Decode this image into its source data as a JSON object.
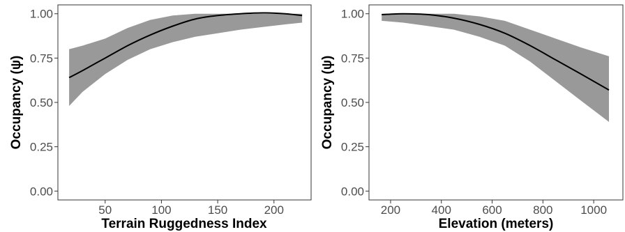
{
  "colors": {
    "band": "#999999",
    "line": "#000000"
  },
  "chart_data": [
    {
      "type": "line",
      "title": "",
      "xlabel": "Terrain Ruggedness Index",
      "ylabel": "Occupancy (ψ)",
      "xlim": [
        8,
        233
      ],
      "ylim": [
        -0.05,
        1.05
      ],
      "xticks": [
        50,
        100,
        150,
        200
      ],
      "xtick_labels": [
        "50",
        "100",
        "150",
        "200"
      ],
      "yticks": [
        0.0,
        0.25,
        0.5,
        0.75,
        1.0
      ],
      "ytick_labels": [
        "0.00",
        "0.25",
        "0.50",
        "0.75",
        "1.00"
      ],
      "grid": false,
      "x": [
        18,
        30,
        50,
        70,
        90,
        110,
        130,
        150,
        170,
        190,
        210,
        225
      ],
      "y": [
        0.64,
        0.68,
        0.75,
        0.82,
        0.88,
        0.93,
        0.97,
        0.99,
        1.0,
        1.005,
        1.0,
        0.99
      ],
      "lower": [
        0.48,
        0.56,
        0.66,
        0.74,
        0.8,
        0.84,
        0.87,
        0.89,
        0.91,
        0.925,
        0.94,
        0.95
      ],
      "upper": [
        0.8,
        0.82,
        0.86,
        0.92,
        0.965,
        0.99,
        1.0,
        1.0,
        1.0,
        1.0,
        1.0,
        1.0
      ]
    },
    {
      "type": "line",
      "title": "",
      "xlabel": "Elevation (meters)",
      "ylabel": "Occupancy (ψ)",
      "xlim": [
        115,
        1115
      ],
      "ylim": [
        -0.05,
        1.05
      ],
      "xticks": [
        200,
        400,
        600,
        800,
        1000
      ],
      "xtick_labels": [
        "200",
        "400",
        "600",
        "800",
        "1000"
      ],
      "yticks": [
        0.0,
        0.25,
        0.5,
        0.75,
        1.0
      ],
      "ytick_labels": [
        "0.00",
        "0.25",
        "0.50",
        "0.75",
        "1.00"
      ],
      "grid": false,
      "x": [
        165,
        250,
        350,
        450,
        550,
        650,
        750,
        850,
        950,
        1060
      ],
      "y": [
        0.995,
        1.0,
        0.995,
        0.975,
        0.94,
        0.89,
        0.82,
        0.74,
        0.66,
        0.57
      ],
      "lower": [
        0.96,
        0.95,
        0.93,
        0.91,
        0.87,
        0.82,
        0.73,
        0.62,
        0.51,
        0.39
      ],
      "upper": [
        1.0,
        1.0,
        1.0,
        1.0,
        0.985,
        0.96,
        0.91,
        0.86,
        0.81,
        0.76
      ]
    }
  ]
}
